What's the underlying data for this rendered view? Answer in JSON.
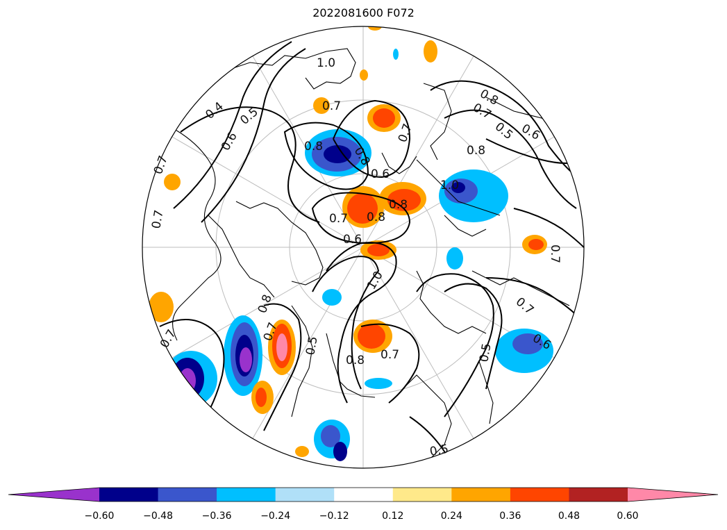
{
  "title": "2022081600 F072",
  "colorbar": {
    "ticks": [
      "−0.60",
      "−0.48",
      "−0.36",
      "−0.24",
      "−0.12",
      "0.12",
      "0.24",
      "0.36",
      "0.48",
      "0.60"
    ],
    "colors": [
      "#9932CC",
      "#00008B",
      "#3A56CC",
      "#00BFFF",
      "#B0E0F8",
      "#FFFFFF",
      "#FFE98A",
      "#FFA500",
      "#FF4500",
      "#B22222",
      "#FF88A8"
    ],
    "extend": "both"
  },
  "contour_labels": [
    "0.4",
    "0.5",
    "0.6",
    "0.7",
    "0.8",
    "1.0",
    "0.7",
    "0.8",
    "0.6",
    "0.7",
    "0.8",
    "0.8",
    "0.7",
    "0.6",
    "0.7",
    "1.0",
    "0.8",
    "0.7",
    "0.6",
    "0.5",
    "0.8",
    "0.7",
    "0.8",
    "0.7",
    "0.8",
    "1.0",
    "0.5",
    "0.7",
    "0.6",
    "0.5",
    "0.7",
    "0.7",
    "0.5"
  ]
}
